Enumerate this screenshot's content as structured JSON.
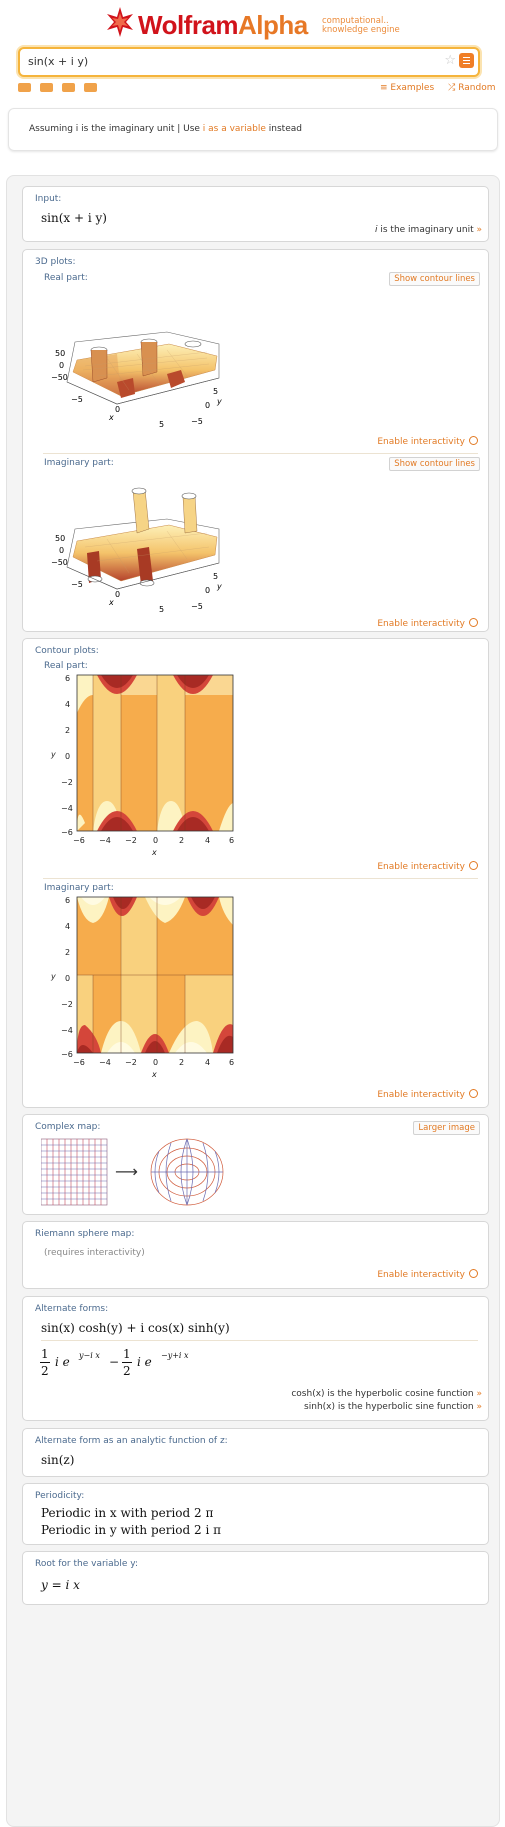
{
  "header": {
    "brand_part1": "Wolfram",
    "brand_part2": "Alpha",
    "tagline_line1": "computational..",
    "tagline_line2": "knowledge engine",
    "query": "sin(x + i y)",
    "examples_label": "Examples",
    "random_label": "Random"
  },
  "assumption": {
    "prefix": "Assuming i is the imaginary unit | Use ",
    "link": "i as a variable",
    "suffix": " instead"
  },
  "pods": {
    "input": {
      "title": "Input:",
      "expr": "sin(x + i y)",
      "note_var": "i",
      "note_text": " is the imaginary unit",
      "note_arrow": "»"
    },
    "plots3d": {
      "title": "3D plots:",
      "real_label": "Real part:",
      "imag_label": "Imaginary part:",
      "contour_button": "Show contour lines",
      "interactivity": "Enable interactivity",
      "z_ticks": [
        "50",
        "0",
        "−50"
      ],
      "x_ticks": [
        "−5",
        "0",
        "5"
      ],
      "y_ticks": [
        "5",
        "0",
        "−5"
      ],
      "x_label": "x",
      "y_label": "y"
    },
    "contour": {
      "title": "Contour plots:",
      "real_label": "Real part:",
      "imag_label": "Imaginary part:",
      "interactivity": "Enable interactivity",
      "ticks": [
        "−6",
        "−4",
        "−2",
        "0",
        "2",
        "4",
        "6"
      ],
      "x_label": "x",
      "y_label": "y"
    },
    "complexmap": {
      "title": "Complex map:",
      "button": "Larger image",
      "arrow": "⟶"
    },
    "riemann": {
      "title": "Riemann sphere map:",
      "note": "(requires interactivity)",
      "interactivity": "Enable interactivity"
    },
    "altforms": {
      "title": "Alternate forms:",
      "form1": "sin(x) cosh(y) + i cos(x) sinh(y)",
      "half": "1",
      "two": "2",
      "term1": "i e",
      "exp1": "y−i x",
      "minus": "−",
      "term2": "i e",
      "exp2": "−y+i x",
      "note1_fn": "cosh(x)",
      "note1_text": " is the hyperbolic cosine function",
      "note2_fn": "sinh(x)",
      "note2_text": " is the hyperbolic sine function",
      "arrow": "»"
    },
    "analytic": {
      "title": "Alternate form as an analytic function of z:",
      "expr": "sin(z)"
    },
    "periodicity": {
      "title": "Periodicity:",
      "line1": "Periodic in x with period 2 π",
      "line2": "Periodic in y with period 2 i π"
    },
    "root": {
      "title": "Root for the variable y:",
      "expr": "y = i x"
    }
  },
  "colors": {
    "accent": "#e27a24",
    "title_blue": "#4b6a8e",
    "dark_red": "#a82a24",
    "red": "#d4463a",
    "orange": "#f4a548",
    "light_orange": "#f8cf80",
    "pale": "#fdf3c2",
    "cream": "#fffbe2"
  }
}
